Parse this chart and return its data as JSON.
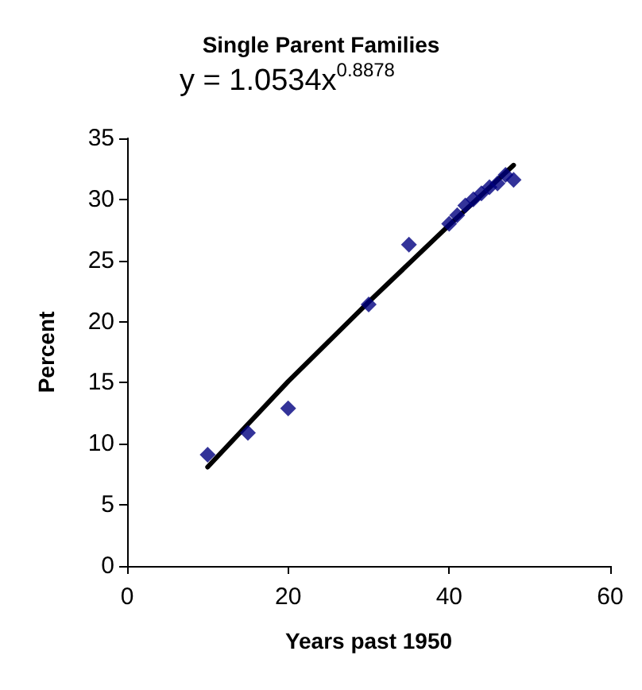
{
  "chart_data": {
    "type": "scatter",
    "title": "Single Parent Families",
    "xlabel": "Years past 1950",
    "ylabel": "Percent",
    "annotations": [
      "y = 1.0534x$^{0.8878}$"
    ],
    "series": [
      {
        "color": "#000080",
        "marker": "diamond",
        "x": [
          10,
          15,
          20,
          30,
          35,
          40,
          41,
          42,
          43,
          44,
          45,
          46,
          47,
          48
        ],
        "values": [
          9.1,
          10.9,
          12.9,
          21.4,
          26.3,
          28,
          28.7,
          29.5,
          30,
          30.5,
          31,
          31.3,
          32,
          31.6
        ]
      },
      {
        "type": "line",
        "color": "#000000",
        "marker": "none",
        "x": [
          10,
          20,
          30,
          40,
          48
        ],
        "values": [
          8.1,
          15.1,
          21.6,
          27.9,
          32.8
        ]
      }
    ],
    "xlim": [
      0,
      60
    ],
    "xticks": [
      0,
      20,
      40,
      60
    ],
    "ylim": [
      0,
      35
    ],
    "yticks": [
      0,
      5,
      10,
      15,
      20,
      25,
      30,
      35
    ],
    "grid": false
  }
}
